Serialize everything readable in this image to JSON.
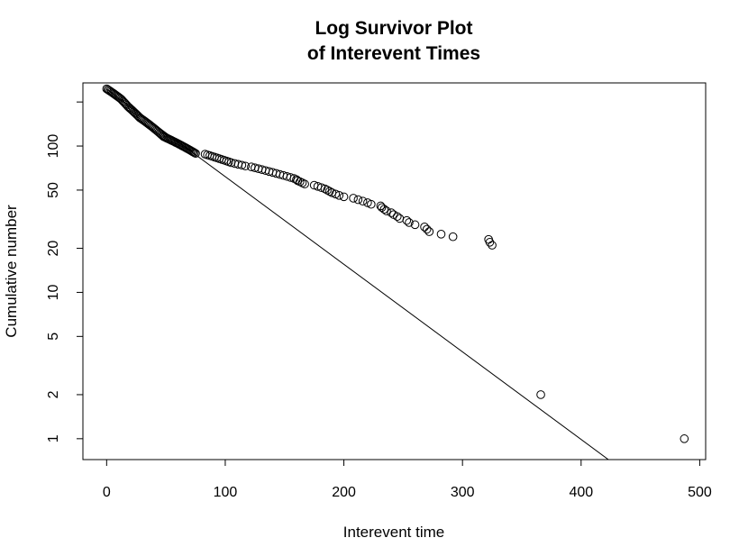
{
  "chart_data": {
    "type": "scatter",
    "title": "Log Survivor Plot",
    "subtitle": "of Interevent Times",
    "xlabel": "Interevent time",
    "ylabel": "Cumulative number",
    "x_scale": "linear",
    "y_scale": "log",
    "xlim": [
      -20,
      505
    ],
    "ylim": [
      0.72,
      270
    ],
    "x_ticks": [
      0,
      100,
      200,
      300,
      400,
      500
    ],
    "x_tick_labels": [
      "0",
      "100",
      "200",
      "300",
      "400",
      "500"
    ],
    "y_ticks": [
      1,
      2,
      5,
      10,
      20,
      50,
      100,
      200
    ],
    "y_tick_labels": [
      "1",
      "2",
      "5",
      "10",
      "20",
      "50",
      "100",
      ""
    ],
    "grid": false,
    "legend": "none",
    "marker": "open-circle",
    "colors": {
      "points": "#000000",
      "line": "#000000",
      "frame": "#000000",
      "background": "#ffffff"
    },
    "fit_line": {
      "x": [
        0,
        423
      ],
      "y": [
        245,
        0.72
      ]
    },
    "points": {
      "x": [
        0,
        1,
        2,
        3,
        4,
        5,
        6,
        7,
        8,
        9,
        10,
        11,
        12,
        13,
        14,
        15,
        16,
        17,
        18,
        19,
        20,
        21,
        22,
        23,
        24,
        25,
        26,
        27,
        28,
        29,
        30,
        31,
        32,
        33,
        34,
        35,
        36,
        37,
        38,
        39,
        40,
        41,
        42,
        43,
        44,
        45,
        46,
        47,
        48,
        49,
        50,
        51,
        52,
        53,
        54,
        55,
        56,
        57,
        58,
        59,
        60,
        61,
        62,
        63,
        64,
        65,
        66,
        67,
        68,
        69,
        70,
        71,
        72,
        73,
        74,
        75,
        83,
        85,
        87,
        89,
        91,
        93,
        95,
        97,
        99,
        101,
        103,
        105,
        108,
        111,
        114,
        117,
        122,
        125,
        128,
        131,
        134,
        137,
        140,
        143,
        146,
        149,
        152,
        155,
        158,
        160,
        161,
        163,
        165,
        167,
        175,
        178,
        181,
        184,
        186,
        188,
        190,
        193,
        196,
        200,
        208,
        212,
        216,
        220,
        223,
        231,
        232,
        234,
        236,
        240,
        242,
        245,
        247,
        253,
        255,
        260,
        268,
        270,
        272,
        282,
        292,
        322,
        323,
        325,
        366,
        487
      ],
      "y": [
        246,
        243,
        240,
        237,
        234,
        231,
        228,
        225,
        222,
        219,
        216,
        213,
        210,
        206,
        202,
        198,
        194,
        190,
        186,
        183,
        180,
        177,
        174,
        171,
        168,
        165,
        162,
        159,
        156,
        154,
        152,
        150,
        148,
        146,
        144,
        142,
        140,
        138,
        136,
        134,
        132,
        130,
        128,
        126,
        124,
        122,
        120,
        118,
        116,
        115,
        114,
        113,
        112,
        111,
        110,
        109,
        108,
        107,
        106,
        105,
        104,
        103,
        102,
        101,
        100,
        99,
        98,
        97,
        96,
        95,
        94,
        93,
        92,
        91,
        90,
        89,
        88,
        87,
        86,
        85,
        84,
        83,
        82,
        81,
        80,
        79,
        78,
        77,
        76,
        75,
        74,
        73,
        72,
        71,
        70,
        69,
        68,
        67,
        66,
        65,
        64,
        63,
        62,
        61,
        60,
        59,
        58,
        57,
        56,
        55,
        54,
        53,
        52,
        51,
        50,
        49,
        48,
        47,
        46,
        45,
        44,
        43,
        42,
        41,
        40,
        39,
        38,
        37,
        36,
        35,
        34,
        33,
        32,
        31,
        30,
        29,
        28,
        27,
        26,
        25,
        24,
        23,
        22,
        21,
        2,
        1
      ]
    }
  }
}
